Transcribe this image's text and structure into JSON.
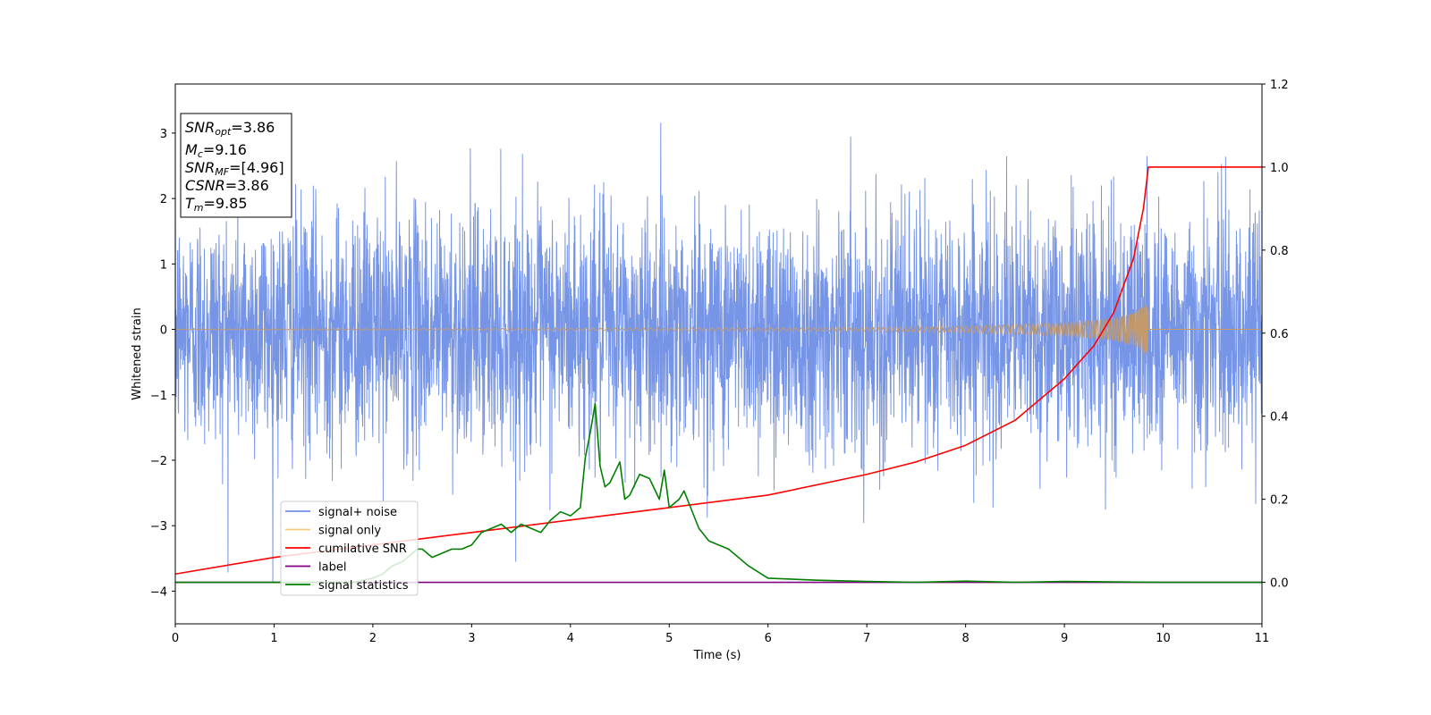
{
  "chart_data": {
    "type": "line",
    "xlabel": "Time (s)",
    "ylabel": "Whitened strain",
    "xlim": [
      0,
      11
    ],
    "ylim": [
      -4.5,
      3.75
    ],
    "y2lim": [
      -0.1,
      1.2
    ],
    "x_ticks": [
      "0",
      "1",
      "2",
      "3",
      "4",
      "5",
      "6",
      "7",
      "8",
      "9",
      "10",
      "11"
    ],
    "y_ticks": [
      "3",
      "2",
      "1",
      "0",
      "−1",
      "−2",
      "−3",
      "−4"
    ],
    "y2_ticks": [
      "1.2",
      "1.0",
      "0.8",
      "0.6",
      "0.4",
      "0.2",
      "0.0"
    ],
    "grid": false,
    "legend_placement": "lower-left",
    "legend": [
      {
        "label": "signal+ noise",
        "color": "#6f8fe6"
      },
      {
        "label": "signal only",
        "color": "#f5c97a"
      },
      {
        "label": "cumilative SNR",
        "color": "#ff0000"
      },
      {
        "label": "label",
        "color": "#800080"
      },
      {
        "label": "signal statistics",
        "color": "#008000"
      }
    ],
    "annotation": {
      "snr_opt": {
        "name": "SNR",
        "sub": "opt",
        "value": "=3.86"
      },
      "mc": {
        "name": "M",
        "sub": "c",
        "value": "=9.16"
      },
      "snr_mf": {
        "name": "SNR",
        "sub": "MF",
        "value": "=[4.96]"
      },
      "csnr": {
        "name": "CSNR",
        "value": "=3.86"
      },
      "tm": {
        "name": "T",
        "sub": "m",
        "value": "=9.85"
      }
    },
    "series": [
      {
        "name": "signal+ noise",
        "axis": "left",
        "color": "#6f8fe6",
        "description_stats": {
          "mean": 0,
          "std": 0.92,
          "max": 3.45,
          "min": -4.15
        },
        "x_range": [
          0,
          11
        ]
      },
      {
        "name": "signal only",
        "axis": "left",
        "color": "#f5c97a",
        "envelope": {
          "x": [
            0,
            5,
            7,
            8,
            9,
            9.5,
            9.7,
            9.8,
            9.85
          ],
          "amp": [
            0.005,
            0.02,
            0.03,
            0.05,
            0.1,
            0.17,
            0.25,
            0.35,
            0.45
          ]
        },
        "merger_time": 9.85
      },
      {
        "name": "cumilative SNR",
        "axis": "right",
        "color": "#ff0000",
        "x": [
          0,
          1,
          2,
          3,
          4,
          5,
          6,
          7,
          7.5,
          8,
          8.5,
          9,
          9.3,
          9.5,
          9.7,
          9.8,
          9.85,
          11
        ],
        "y": [
          0.02,
          0.06,
          0.09,
          0.12,
          0.15,
          0.18,
          0.21,
          0.26,
          0.29,
          0.33,
          0.39,
          0.49,
          0.57,
          0.65,
          0.78,
          0.9,
          1.0,
          1.0
        ]
      },
      {
        "name": "label",
        "axis": "right",
        "color": "#800080",
        "x": [
          0,
          11
        ],
        "y": [
          0,
          0
        ]
      },
      {
        "name": "signal statistics",
        "axis": "right",
        "color": "#008000",
        "x": [
          0,
          1,
          1.5,
          1.8,
          2.0,
          2.1,
          2.2,
          2.3,
          2.4,
          2.45,
          2.5,
          2.6,
          2.7,
          2.8,
          2.9,
          3.0,
          3.1,
          3.2,
          3.3,
          3.4,
          3.5,
          3.6,
          3.7,
          3.8,
          3.9,
          4.0,
          4.1,
          4.15,
          4.2,
          4.25,
          4.3,
          4.35,
          4.4,
          4.5,
          4.55,
          4.6,
          4.7,
          4.8,
          4.9,
          4.95,
          5.0,
          5.1,
          5.15,
          5.2,
          5.3,
          5.4,
          5.5,
          5.6,
          5.7,
          5.8,
          6.0,
          6.5,
          7.0,
          7.5,
          8.0,
          8.5,
          9.0,
          10.0,
          11.0
        ],
        "y": [
          0.0,
          0.0,
          0.0,
          0.0,
          0.01,
          0.02,
          0.04,
          0.05,
          0.07,
          0.08,
          0.08,
          0.06,
          0.07,
          0.08,
          0.08,
          0.09,
          0.12,
          0.13,
          0.14,
          0.12,
          0.14,
          0.13,
          0.12,
          0.15,
          0.17,
          0.16,
          0.18,
          0.3,
          0.36,
          0.43,
          0.28,
          0.23,
          0.24,
          0.29,
          0.2,
          0.21,
          0.26,
          0.25,
          0.2,
          0.27,
          0.18,
          0.2,
          0.22,
          0.19,
          0.13,
          0.1,
          0.09,
          0.08,
          0.06,
          0.04,
          0.01,
          0.005,
          0.002,
          0.0,
          0.003,
          0.0,
          0.002,
          0.0,
          0.0
        ]
      }
    ]
  }
}
